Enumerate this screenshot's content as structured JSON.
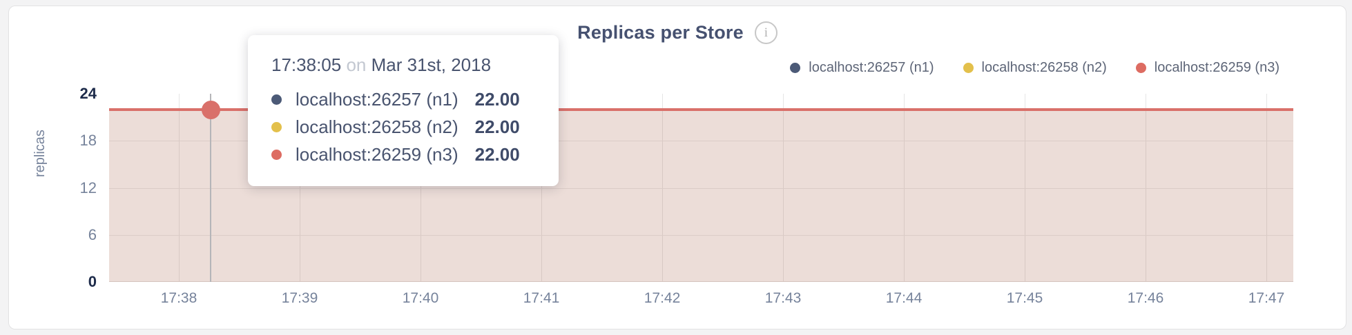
{
  "header": {
    "title": "Replicas per Store",
    "info_glyph": "i"
  },
  "legend": {
    "items": [
      {
        "label": "localhost:26257 (n1)",
        "color": "#4c5a77"
      },
      {
        "label": "localhost:26258 (n2)",
        "color": "#e3c04b"
      },
      {
        "label": "localhost:26259 (n3)",
        "color": "#dd6c62"
      }
    ]
  },
  "tooltip": {
    "time": "17:38:05",
    "connector": "on",
    "date": "Mar 31st, 2018",
    "rows": [
      {
        "label": "localhost:26257 (n1)",
        "value": "22.00",
        "color": "#4c5a77"
      },
      {
        "label": "localhost:26258 (n2)",
        "value": "22.00",
        "color": "#e3c04b"
      },
      {
        "label": "localhost:26259 (n3)",
        "value": "22.00",
        "color": "#dd6c62"
      }
    ]
  },
  "chart_data": {
    "type": "area",
    "title": "Replicas per Store",
    "ylabel": "replicas",
    "x": [
      "17:38",
      "17:39",
      "17:40",
      "17:41",
      "17:42",
      "17:43",
      "17:44",
      "17:45",
      "17:46",
      "17:47"
    ],
    "y_ticks": [
      0,
      6,
      12,
      18,
      24
    ],
    "ylim": [
      0,
      24
    ],
    "grid": true,
    "legend_position": "top-right",
    "series": [
      {
        "name": "localhost:26257 (n1)",
        "color": "#4c5a77",
        "values": [
          22,
          22,
          22,
          22,
          22,
          22,
          22,
          22,
          22,
          22
        ]
      },
      {
        "name": "localhost:26258 (n2)",
        "color": "#e3c04b",
        "values": [
          22,
          22,
          22,
          22,
          22,
          22,
          22,
          22,
          22,
          22
        ]
      },
      {
        "name": "localhost:26259 (n3)",
        "color": "#dd6c62",
        "values": [
          22,
          22,
          22,
          22,
          22,
          22,
          22,
          22,
          22,
          22
        ]
      }
    ],
    "hovered_point": {
      "time": "17:38:05",
      "date": "Mar 31st, 2018",
      "values": [
        22,
        22,
        22
      ]
    },
    "line_color": "#d9706a",
    "fill_color": "rgba(180,118,99,0.25)"
  }
}
